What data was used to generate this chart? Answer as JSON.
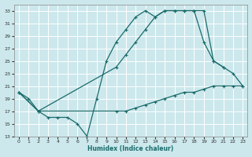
{
  "bg_color": "#cce8ec",
  "grid_color": "#ffffff",
  "line_color": "#1a6b6b",
  "xlabel": "Humidex (Indice chaleur)",
  "ylim": [
    13,
    34
  ],
  "xlim": [
    -0.5,
    23.5
  ],
  "yticks": [
    13,
    15,
    17,
    19,
    21,
    23,
    25,
    27,
    29,
    31,
    33
  ],
  "xticks": [
    0,
    1,
    2,
    3,
    4,
    5,
    6,
    7,
    8,
    9,
    10,
    11,
    12,
    13,
    14,
    15,
    16,
    17,
    18,
    19,
    20,
    21,
    22,
    23
  ],
  "line1_x": [
    0,
    1,
    2,
    3,
    4,
    5,
    6,
    7,
    8,
    9,
    10,
    11,
    12,
    13,
    14,
    15,
    16,
    17,
    18,
    19,
    20,
    21
  ],
  "line1_y": [
    20,
    19,
    17,
    16,
    16,
    16,
    15,
    13,
    19,
    25,
    28,
    30,
    32,
    33,
    32,
    33,
    33,
    33,
    33,
    33,
    25,
    24
  ],
  "line2_x": [
    0,
    2,
    10,
    11,
    12,
    13,
    14,
    15,
    16,
    17,
    18,
    19,
    20,
    21,
    22,
    23
  ],
  "line2_y": [
    20,
    17,
    24,
    26,
    28,
    30,
    32,
    33,
    33,
    33,
    33,
    28,
    25,
    24,
    23,
    21
  ],
  "line3_x": [
    0,
    2,
    10,
    11,
    12,
    13,
    14,
    15,
    16,
    17,
    18,
    19,
    20,
    21,
    22,
    23
  ],
  "line3_y": [
    20,
    17,
    17,
    17,
    17.5,
    18,
    18.5,
    19,
    19.5,
    20,
    20,
    20.5,
    21,
    21,
    21,
    21
  ]
}
